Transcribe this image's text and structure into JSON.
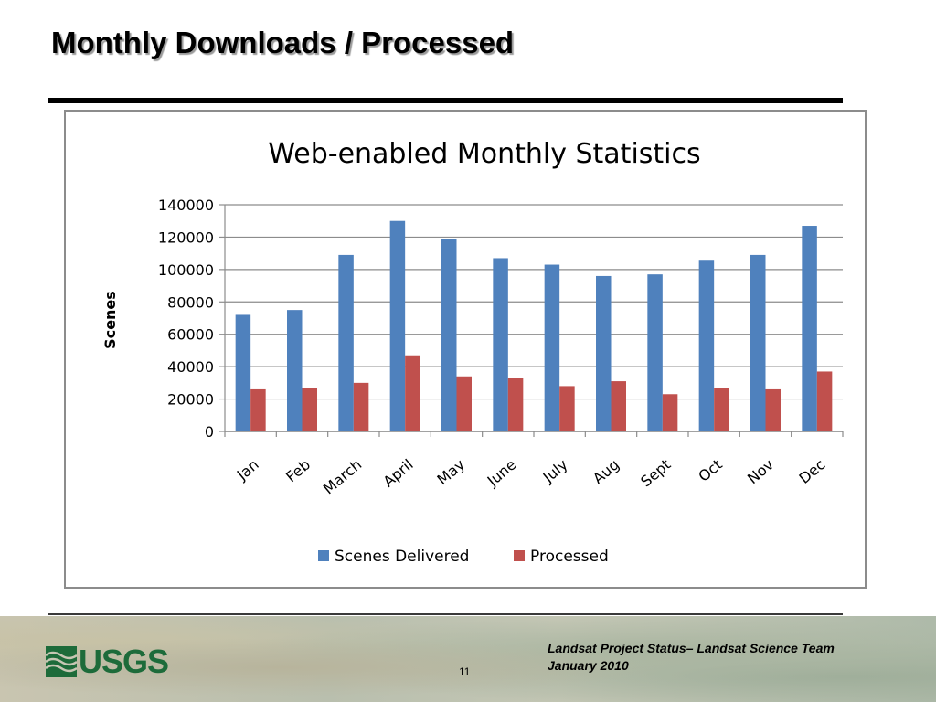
{
  "slide": {
    "title": "Monthly Downloads / Processed",
    "page_number": "11",
    "footer_line1": "Landsat Project Status– Landsat Science Team",
    "footer_line2": "January 2010",
    "logo_text": "USGS"
  },
  "colors": {
    "scenes_delivered": "#4f81bd",
    "processed": "#c0504d",
    "usgs_green": "#1d6b3a"
  },
  "chart_data": {
    "type": "bar",
    "title": "Web-enabled Monthly Statistics",
    "xlabel": "",
    "ylabel": "Scenes",
    "ylim": [
      0,
      140000
    ],
    "yticks": [
      0,
      20000,
      40000,
      60000,
      80000,
      100000,
      120000,
      140000
    ],
    "grid": true,
    "legend_position": "bottom",
    "categories": [
      "Jan",
      "Feb",
      "March",
      "April",
      "May",
      "June",
      "July",
      "Aug",
      "Sept",
      "Oct",
      "Nov",
      "Dec"
    ],
    "series": [
      {
        "name": "Scenes Delivered",
        "color": "#4f81bd",
        "values": [
          72000,
          75000,
          109000,
          130000,
          119000,
          107000,
          103000,
          96000,
          97000,
          106000,
          109000,
          127000
        ]
      },
      {
        "name": "Processed",
        "color": "#c0504d",
        "values": [
          26000,
          27000,
          30000,
          47000,
          34000,
          33000,
          28000,
          31000,
          23000,
          27000,
          26000,
          37000
        ]
      }
    ]
  }
}
